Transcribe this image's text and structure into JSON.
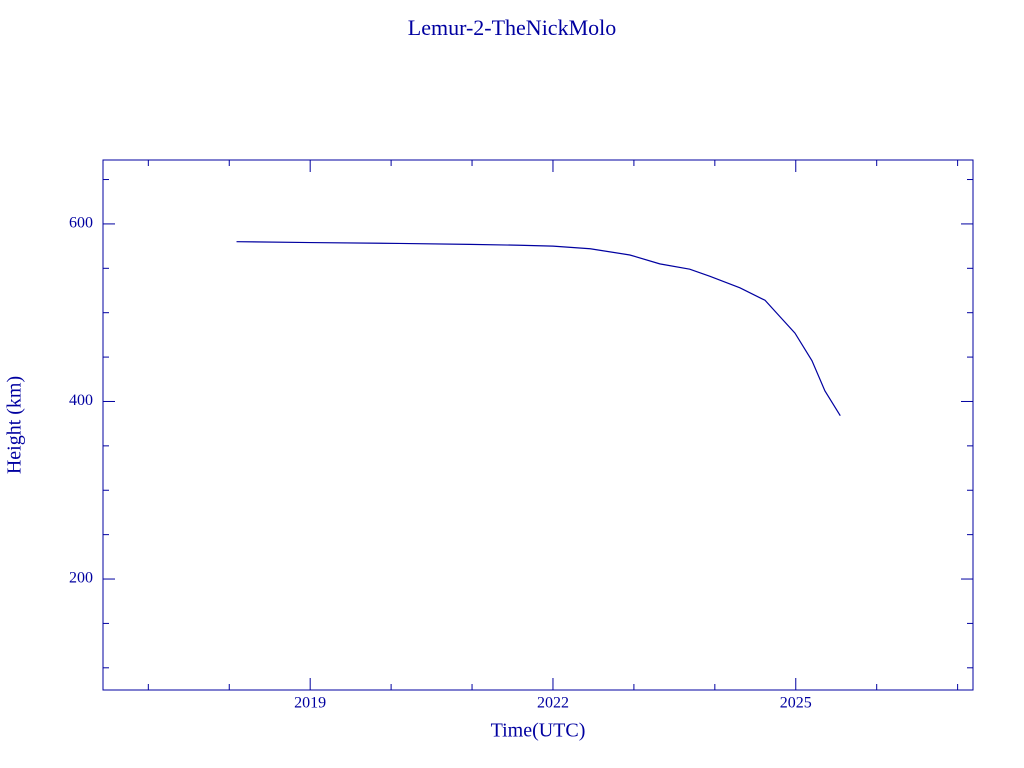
{
  "chart_data": {
    "type": "line",
    "title": "Lemur-2-TheNickMolo",
    "x_label": "Time(UTC)",
    "y_label": "Height (km)",
    "x": [
      2018.09,
      2019.0,
      2020.1,
      2020.97,
      2021.59,
      2022.0,
      2022.46,
      2022.95,
      2023.32,
      2023.69,
      2023.94,
      2024.31,
      2024.62,
      2024.8,
      2024.99,
      2025.2,
      2025.36,
      2025.55
    ],
    "series": [
      {
        "name": "Height",
        "color": "#0000a0",
        "values": [
          580,
          579,
          578,
          577,
          576,
          575,
          572,
          565,
          555,
          549,
          541,
          528,
          514,
          496,
          477,
          446,
          412,
          384
        ]
      }
    ],
    "xlim": [
      2016.44,
      2027.19
    ],
    "ylim": [
      75,
      672
    ],
    "xticks": [
      2019,
      2022,
      2025
    ],
    "yticks": [
      200,
      400,
      600
    ],
    "x_minor_ticks": [
      2017,
      2018,
      2020,
      2021,
      2023,
      2024,
      2026,
      2027
    ],
    "y_minor_ticks": [
      100,
      150,
      250,
      300,
      350,
      450,
      500,
      550,
      650
    ],
    "color": "#0000a0"
  }
}
